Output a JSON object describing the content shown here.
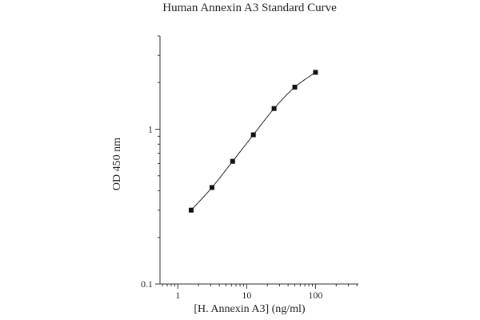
{
  "chart_data": {
    "type": "scatter",
    "title": "Human Annexin A3 Standard Curve",
    "xlabel": "[H. Annexin A3] (ng/ml)",
    "ylabel": "OD 450 nm",
    "x_scale": "log",
    "y_scale": "log",
    "xlim": [
      0.55,
      420
    ],
    "ylim": [
      0.1,
      4.0
    ],
    "x_ticks": [
      1,
      10,
      100
    ],
    "x_tick_labels": [
      "1",
      "10",
      "100"
    ],
    "y_ticks": [
      0.1,
      1
    ],
    "y_tick_labels": [
      "0.1",
      "1"
    ],
    "grid": false,
    "fit_curve": true,
    "series": [
      {
        "x": [
          1.56,
          3.13,
          6.25,
          12.5,
          25,
          50,
          100
        ],
        "y": [
          0.3,
          0.42,
          0.62,
          0.92,
          1.36,
          1.87,
          2.33
        ]
      }
    ]
  }
}
